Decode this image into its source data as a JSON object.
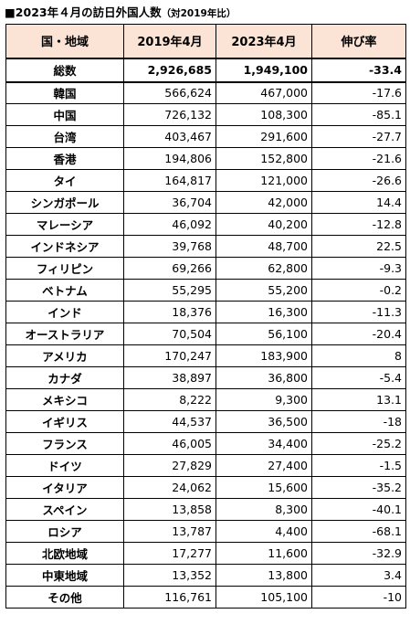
{
  "title": {
    "main": "■2023年４月の訪日外国人数",
    "sub": "（対2019年比）"
  },
  "headers": [
    "国・地域",
    "2019年4月",
    "2023年4月",
    "伸び率"
  ],
  "total": {
    "name": "総数",
    "y2019": "2,926,685",
    "y2023": "1,949,100",
    "growth": "-33.4"
  },
  "rows": [
    {
      "name": "韓国",
      "y2019": "566,624",
      "y2023": "467,000",
      "growth": "-17.6"
    },
    {
      "name": "中国",
      "y2019": "726,132",
      "y2023": "108,300",
      "growth": "-85.1"
    },
    {
      "name": "台湾",
      "y2019": "403,467",
      "y2023": "291,600",
      "growth": "-27.7"
    },
    {
      "name": "香港",
      "y2019": "194,806",
      "y2023": "152,800",
      "growth": "-21.6"
    },
    {
      "name": "タイ",
      "y2019": "164,817",
      "y2023": "121,000",
      "growth": "-26.6"
    },
    {
      "name": "シンガポール",
      "y2019": "36,704",
      "y2023": "42,000",
      "growth": "14.4"
    },
    {
      "name": "マレーシア",
      "y2019": "46,092",
      "y2023": "40,200",
      "growth": "-12.8"
    },
    {
      "name": "インドネシア",
      "y2019": "39,768",
      "y2023": "48,700",
      "growth": "22.5"
    },
    {
      "name": "フィリピン",
      "y2019": "69,266",
      "y2023": "62,800",
      "growth": "-9.3"
    },
    {
      "name": "ベトナム",
      "y2019": "55,295",
      "y2023": "55,200",
      "growth": "-0.2"
    },
    {
      "name": "インド",
      "y2019": "18,376",
      "y2023": "16,300",
      "growth": "-11.3"
    },
    {
      "name": "オーストラリア",
      "y2019": "70,504",
      "y2023": "56,100",
      "growth": "-20.4"
    },
    {
      "name": "アメリカ",
      "y2019": "170,247",
      "y2023": "183,900",
      "growth": "8"
    },
    {
      "name": "カナダ",
      "y2019": "38,897",
      "y2023": "36,800",
      "growth": "-5.4"
    },
    {
      "name": "メキシコ",
      "y2019": "8,222",
      "y2023": "9,300",
      "growth": "13.1"
    },
    {
      "name": "イギリス",
      "y2019": "44,537",
      "y2023": "36,500",
      "growth": "-18"
    },
    {
      "name": "フランス",
      "y2019": "46,005",
      "y2023": "34,400",
      "growth": "-25.2"
    },
    {
      "name": "ドイツ",
      "y2019": "27,829",
      "y2023": "27,400",
      "growth": "-1.5"
    },
    {
      "name": "イタリア",
      "y2019": "24,062",
      "y2023": "15,600",
      "growth": "-35.2"
    },
    {
      "name": "スペイン",
      "y2019": "13,858",
      "y2023": "8,300",
      "growth": "-40.1"
    },
    {
      "name": "ロシア",
      "y2019": "13,787",
      "y2023": "4,400",
      "growth": "-68.1"
    },
    {
      "name": "北欧地域",
      "y2019": "17,277",
      "y2023": "11,600",
      "growth": "-32.9"
    },
    {
      "name": "中東地域",
      "y2019": "13,352",
      "y2023": "13,800",
      "growth": "3.4"
    },
    {
      "name": "その他",
      "y2019": "116,761",
      "y2023": "105,100",
      "growth": "-10"
    }
  ],
  "colors": {
    "header_bg": "#fbe4d5",
    "border": "#000000"
  }
}
